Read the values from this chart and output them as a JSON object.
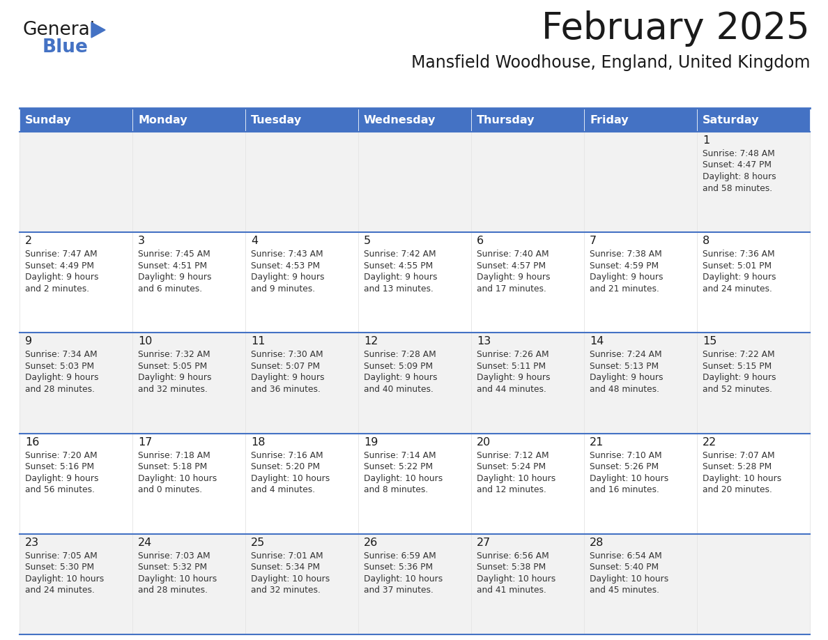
{
  "title": "February 2025",
  "subtitle": "Mansfield Woodhouse, England, United Kingdom",
  "header_bg": "#4472C4",
  "header_text": "#FFFFFF",
  "cell_bg_even": "#F2F2F2",
  "cell_bg_odd": "#FFFFFF",
  "border_color": "#4472C4",
  "title_color": "#1a1a1a",
  "subtitle_color": "#1a1a1a",
  "text_color": "#333333",
  "day_num_color": "#1a1a1a",
  "day_headers": [
    "Sunday",
    "Monday",
    "Tuesday",
    "Wednesday",
    "Thursday",
    "Friday",
    "Saturday"
  ],
  "days": [
    {
      "day": 1,
      "col": 6,
      "row": 0,
      "sunrise": "7:48 AM",
      "sunset": "4:47 PM",
      "daylight_line1": "Daylight: 8 hours",
      "daylight_line2": "and 58 minutes."
    },
    {
      "day": 2,
      "col": 0,
      "row": 1,
      "sunrise": "7:47 AM",
      "sunset": "4:49 PM",
      "daylight_line1": "Daylight: 9 hours",
      "daylight_line2": "and 2 minutes."
    },
    {
      "day": 3,
      "col": 1,
      "row": 1,
      "sunrise": "7:45 AM",
      "sunset": "4:51 PM",
      "daylight_line1": "Daylight: 9 hours",
      "daylight_line2": "and 6 minutes."
    },
    {
      "day": 4,
      "col": 2,
      "row": 1,
      "sunrise": "7:43 AM",
      "sunset": "4:53 PM",
      "daylight_line1": "Daylight: 9 hours",
      "daylight_line2": "and 9 minutes."
    },
    {
      "day": 5,
      "col": 3,
      "row": 1,
      "sunrise": "7:42 AM",
      "sunset": "4:55 PM",
      "daylight_line1": "Daylight: 9 hours",
      "daylight_line2": "and 13 minutes."
    },
    {
      "day": 6,
      "col": 4,
      "row": 1,
      "sunrise": "7:40 AM",
      "sunset": "4:57 PM",
      "daylight_line1": "Daylight: 9 hours",
      "daylight_line2": "and 17 minutes."
    },
    {
      "day": 7,
      "col": 5,
      "row": 1,
      "sunrise": "7:38 AM",
      "sunset": "4:59 PM",
      "daylight_line1": "Daylight: 9 hours",
      "daylight_line2": "and 21 minutes."
    },
    {
      "day": 8,
      "col": 6,
      "row": 1,
      "sunrise": "7:36 AM",
      "sunset": "5:01 PM",
      "daylight_line1": "Daylight: 9 hours",
      "daylight_line2": "and 24 minutes."
    },
    {
      "day": 9,
      "col": 0,
      "row": 2,
      "sunrise": "7:34 AM",
      "sunset": "5:03 PM",
      "daylight_line1": "Daylight: 9 hours",
      "daylight_line2": "and 28 minutes."
    },
    {
      "day": 10,
      "col": 1,
      "row": 2,
      "sunrise": "7:32 AM",
      "sunset": "5:05 PM",
      "daylight_line1": "Daylight: 9 hours",
      "daylight_line2": "and 32 minutes."
    },
    {
      "day": 11,
      "col": 2,
      "row": 2,
      "sunrise": "7:30 AM",
      "sunset": "5:07 PM",
      "daylight_line1": "Daylight: 9 hours",
      "daylight_line2": "and 36 minutes."
    },
    {
      "day": 12,
      "col": 3,
      "row": 2,
      "sunrise": "7:28 AM",
      "sunset": "5:09 PM",
      "daylight_line1": "Daylight: 9 hours",
      "daylight_line2": "and 40 minutes."
    },
    {
      "day": 13,
      "col": 4,
      "row": 2,
      "sunrise": "7:26 AM",
      "sunset": "5:11 PM",
      "daylight_line1": "Daylight: 9 hours",
      "daylight_line2": "and 44 minutes."
    },
    {
      "day": 14,
      "col": 5,
      "row": 2,
      "sunrise": "7:24 AM",
      "sunset": "5:13 PM",
      "daylight_line1": "Daylight: 9 hours",
      "daylight_line2": "and 48 minutes."
    },
    {
      "day": 15,
      "col": 6,
      "row": 2,
      "sunrise": "7:22 AM",
      "sunset": "5:15 PM",
      "daylight_line1": "Daylight: 9 hours",
      "daylight_line2": "and 52 minutes."
    },
    {
      "day": 16,
      "col": 0,
      "row": 3,
      "sunrise": "7:20 AM",
      "sunset": "5:16 PM",
      "daylight_line1": "Daylight: 9 hours",
      "daylight_line2": "and 56 minutes."
    },
    {
      "day": 17,
      "col": 1,
      "row": 3,
      "sunrise": "7:18 AM",
      "sunset": "5:18 PM",
      "daylight_line1": "Daylight: 10 hours",
      "daylight_line2": "and 0 minutes."
    },
    {
      "day": 18,
      "col": 2,
      "row": 3,
      "sunrise": "7:16 AM",
      "sunset": "5:20 PM",
      "daylight_line1": "Daylight: 10 hours",
      "daylight_line2": "and 4 minutes."
    },
    {
      "day": 19,
      "col": 3,
      "row": 3,
      "sunrise": "7:14 AM",
      "sunset": "5:22 PM",
      "daylight_line1": "Daylight: 10 hours",
      "daylight_line2": "and 8 minutes."
    },
    {
      "day": 20,
      "col": 4,
      "row": 3,
      "sunrise": "7:12 AM",
      "sunset": "5:24 PM",
      "daylight_line1": "Daylight: 10 hours",
      "daylight_line2": "and 12 minutes."
    },
    {
      "day": 21,
      "col": 5,
      "row": 3,
      "sunrise": "7:10 AM",
      "sunset": "5:26 PM",
      "daylight_line1": "Daylight: 10 hours",
      "daylight_line2": "and 16 minutes."
    },
    {
      "day": 22,
      "col": 6,
      "row": 3,
      "sunrise": "7:07 AM",
      "sunset": "5:28 PM",
      "daylight_line1": "Daylight: 10 hours",
      "daylight_line2": "and 20 minutes."
    },
    {
      "day": 23,
      "col": 0,
      "row": 4,
      "sunrise": "7:05 AM",
      "sunset": "5:30 PM",
      "daylight_line1": "Daylight: 10 hours",
      "daylight_line2": "and 24 minutes."
    },
    {
      "day": 24,
      "col": 1,
      "row": 4,
      "sunrise": "7:03 AM",
      "sunset": "5:32 PM",
      "daylight_line1": "Daylight: 10 hours",
      "daylight_line2": "and 28 minutes."
    },
    {
      "day": 25,
      "col": 2,
      "row": 4,
      "sunrise": "7:01 AM",
      "sunset": "5:34 PM",
      "daylight_line1": "Daylight: 10 hours",
      "daylight_line2": "and 32 minutes."
    },
    {
      "day": 26,
      "col": 3,
      "row": 4,
      "sunrise": "6:59 AM",
      "sunset": "5:36 PM",
      "daylight_line1": "Daylight: 10 hours",
      "daylight_line2": "and 37 minutes."
    },
    {
      "day": 27,
      "col": 4,
      "row": 4,
      "sunrise": "6:56 AM",
      "sunset": "5:38 PM",
      "daylight_line1": "Daylight: 10 hours",
      "daylight_line2": "and 41 minutes."
    },
    {
      "day": 28,
      "col": 5,
      "row": 4,
      "sunrise": "6:54 AM",
      "sunset": "5:40 PM",
      "daylight_line1": "Daylight: 10 hours",
      "daylight_line2": "and 45 minutes."
    }
  ]
}
